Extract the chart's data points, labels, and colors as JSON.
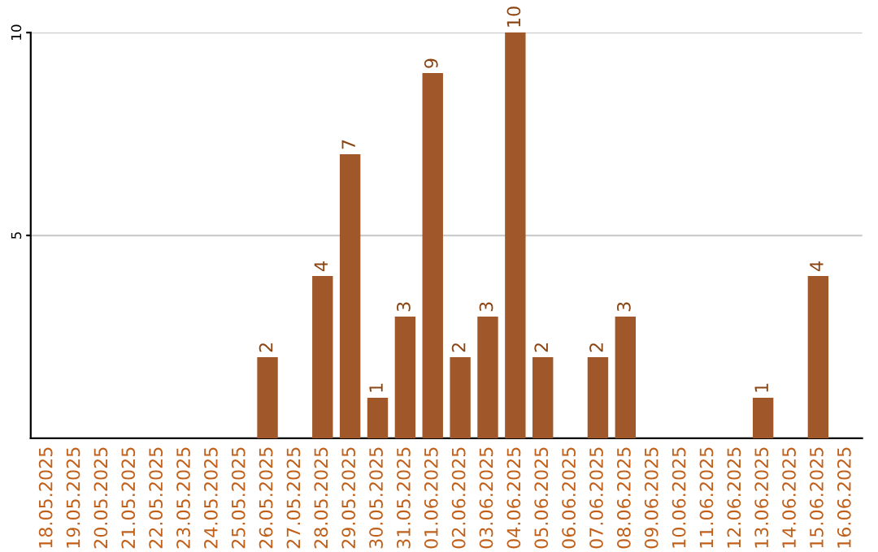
{
  "chart_data": {
    "type": "bar",
    "categories": [
      "18.05.2025",
      "19.05.2025",
      "20.05.2025",
      "21.05.2025",
      "22.05.2025",
      "23.05.2025",
      "24.05.2025",
      "25.05.2025",
      "26.05.2025",
      "27.05.2025",
      "28.05.2025",
      "29.05.2025",
      "30.05.2025",
      "31.05.2025",
      "01.06.2025",
      "02.06.2025",
      "03.06.2025",
      "04.06.2025",
      "05.06.2025",
      "06.06.2025",
      "07.06.2025",
      "08.06.2025",
      "09.06.2025",
      "10.06.2025",
      "11.06.2025",
      "12.06.2025",
      "13.06.2025",
      "14.06.2025",
      "15.06.2025",
      "16.06.2025"
    ],
    "values": [
      0,
      0,
      0,
      0,
      0,
      0,
      0,
      0,
      2,
      0,
      4,
      7,
      1,
      3,
      9,
      2,
      3,
      10,
      2,
      0,
      2,
      3,
      0,
      0,
      0,
      0,
      1,
      0,
      4,
      0
    ],
    "value_labels": [
      null,
      null,
      null,
      null,
      null,
      null,
      null,
      null,
      "2",
      null,
      "4",
      "7",
      "1",
      "3",
      "9",
      "2",
      "3",
      "10",
      "2",
      null,
      "2",
      "3",
      null,
      null,
      null,
      null,
      "1",
      null,
      "4",
      null
    ],
    "color": "#a0582a",
    "ylim": [
      0,
      10
    ],
    "yticks": [
      5,
      10
    ],
    "grid": "y"
  }
}
